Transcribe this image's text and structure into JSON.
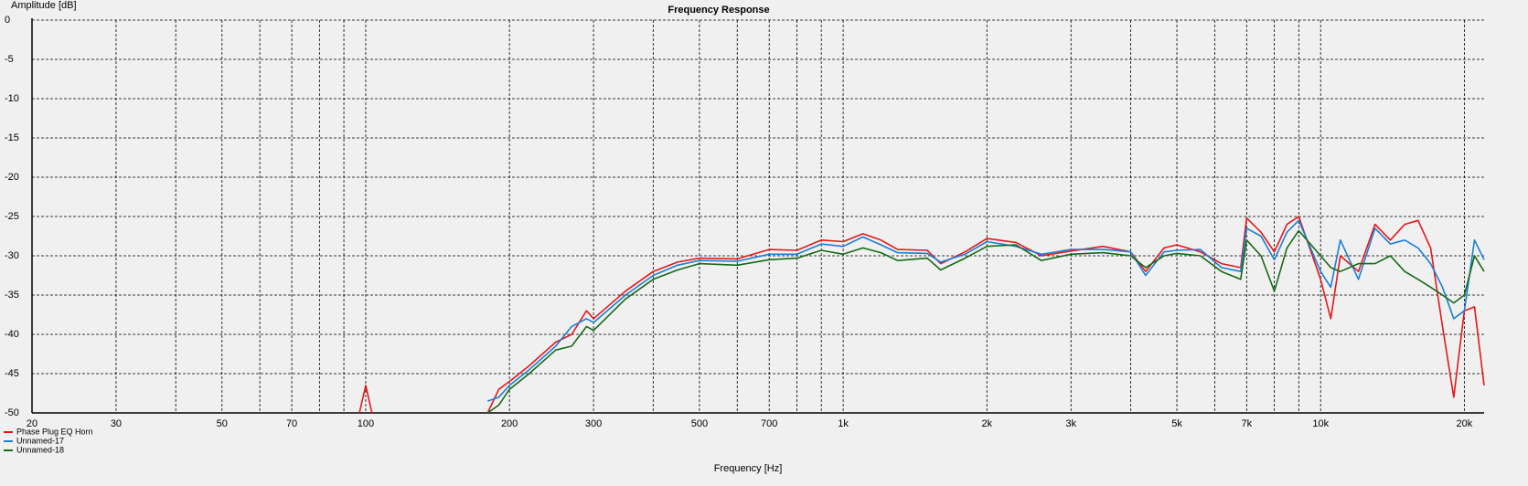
{
  "chart_data": {
    "type": "line",
    "title": "Frequency Response",
    "x_label": "Frequency [Hz]",
    "y_label": "Amplitude [dB]",
    "xscale": "log",
    "xlim": [
      20,
      22000
    ],
    "ylim": [
      -50,
      0
    ],
    "xticks": [
      20,
      30,
      50,
      70,
      100,
      200,
      300,
      500,
      700,
      {
        "value": 1000,
        "label": "1k"
      },
      {
        "value": 2000,
        "label": "2k"
      },
      {
        "value": 3000,
        "label": "3k"
      },
      {
        "value": 5000,
        "label": "5k"
      },
      {
        "value": 7000,
        "label": "7k"
      },
      {
        "value": 10000,
        "label": "10k"
      },
      {
        "value": 20000,
        "label": "20k"
      }
    ],
    "xgrid_minor": [
      40,
      60,
      80,
      90,
      400,
      600,
      800,
      900,
      4000,
      6000,
      8000,
      9000
    ],
    "yticks": [
      0,
      -5,
      -10,
      -15,
      -20,
      -25,
      -30,
      -35,
      -40,
      -45,
      -50
    ],
    "grid": true,
    "legend": "bottom-left",
    "x": [
      97,
      100,
      103,
      160,
      180,
      190,
      200,
      220,
      250,
      270,
      290,
      300,
      350,
      400,
      450,
      500,
      600,
      700,
      800,
      900,
      1000,
      1100,
      1200,
      1300,
      1500,
      1600,
      1800,
      2000,
      2300,
      2600,
      3000,
      3500,
      4000,
      4300,
      4700,
      5000,
      5600,
      6200,
      6800,
      7000,
      7500,
      8000,
      8500,
      9000,
      10000,
      10500,
      11000,
      12000,
      13000,
      14000,
      15000,
      16000,
      17000,
      18000,
      19000,
      20000,
      21000,
      22000
    ],
    "series": [
      {
        "name": "Phase Plug EQ Horn",
        "color": "#e8161b",
        "values": [
          -50,
          -46.5,
          -50,
          null,
          -50,
          -47,
          -46,
          -44,
          -41,
          -40,
          -37,
          -38,
          -34.5,
          -32,
          -30.8,
          -30.3,
          -30.4,
          -29.2,
          -29.3,
          -28,
          -28.2,
          -27.2,
          -28,
          -29.2,
          -29.3,
          -31,
          -29.5,
          -27.8,
          -28.3,
          -30,
          -29.4,
          -28.8,
          -29.5,
          -32,
          -29,
          -28.6,
          -29.5,
          -31,
          -31.5,
          -25.2,
          -27,
          -29.5,
          -26,
          -25,
          -33,
          -38,
          -30,
          -32,
          -26,
          -28,
          -26,
          -25.5,
          -29,
          -39,
          -48,
          -37,
          -36.5,
          -46.5
        ]
      },
      {
        "name": "Unnamed-17",
        "color": "#1a7fd6",
        "values": [
          null,
          null,
          null,
          null,
          -48.5,
          -48,
          -46.5,
          -44.5,
          -41.5,
          -39,
          -38,
          -38.5,
          -35,
          -32.5,
          -31.2,
          -30.6,
          -30.7,
          -29.8,
          -29.8,
          -28.5,
          -28.8,
          -27.6,
          -28.6,
          -29.6,
          -29.7,
          -30.8,
          -29.8,
          -28.2,
          -28.8,
          -29.8,
          -29.2,
          -29.2,
          -29.5,
          -32.5,
          -29.5,
          -29.3,
          -29.2,
          -31.5,
          -32,
          -26.5,
          -27.5,
          -30.5,
          -27,
          -25.5,
          -32,
          -34,
          -28,
          -33,
          -26.5,
          -28.5,
          -28,
          -29,
          -31,
          -34,
          -38,
          -37,
          -28,
          -30.5
        ]
      },
      {
        "name": "Unnamed-18",
        "color": "#156a16",
        "values": [
          null,
          null,
          null,
          null,
          -50,
          -49,
          -47,
          -45,
          -42,
          -41.5,
          -39,
          -39.5,
          -35.5,
          -33,
          -31.8,
          -31,
          -31.2,
          -30.5,
          -30.3,
          -29.3,
          -29.8,
          -29,
          -29.6,
          -30.6,
          -30.3,
          -31.8,
          -30.3,
          -28.8,
          -28.6,
          -30.6,
          -29.8,
          -29.6,
          -30,
          -31.5,
          -30,
          -29.7,
          -30,
          -32,
          -33,
          -28,
          -30,
          -34.5,
          -29,
          -26.8,
          -30,
          -31.5,
          -32,
          -31,
          -31,
          -30,
          -32,
          -33,
          -34,
          -35,
          -36,
          -35,
          -30,
          -32
        ]
      }
    ]
  }
}
